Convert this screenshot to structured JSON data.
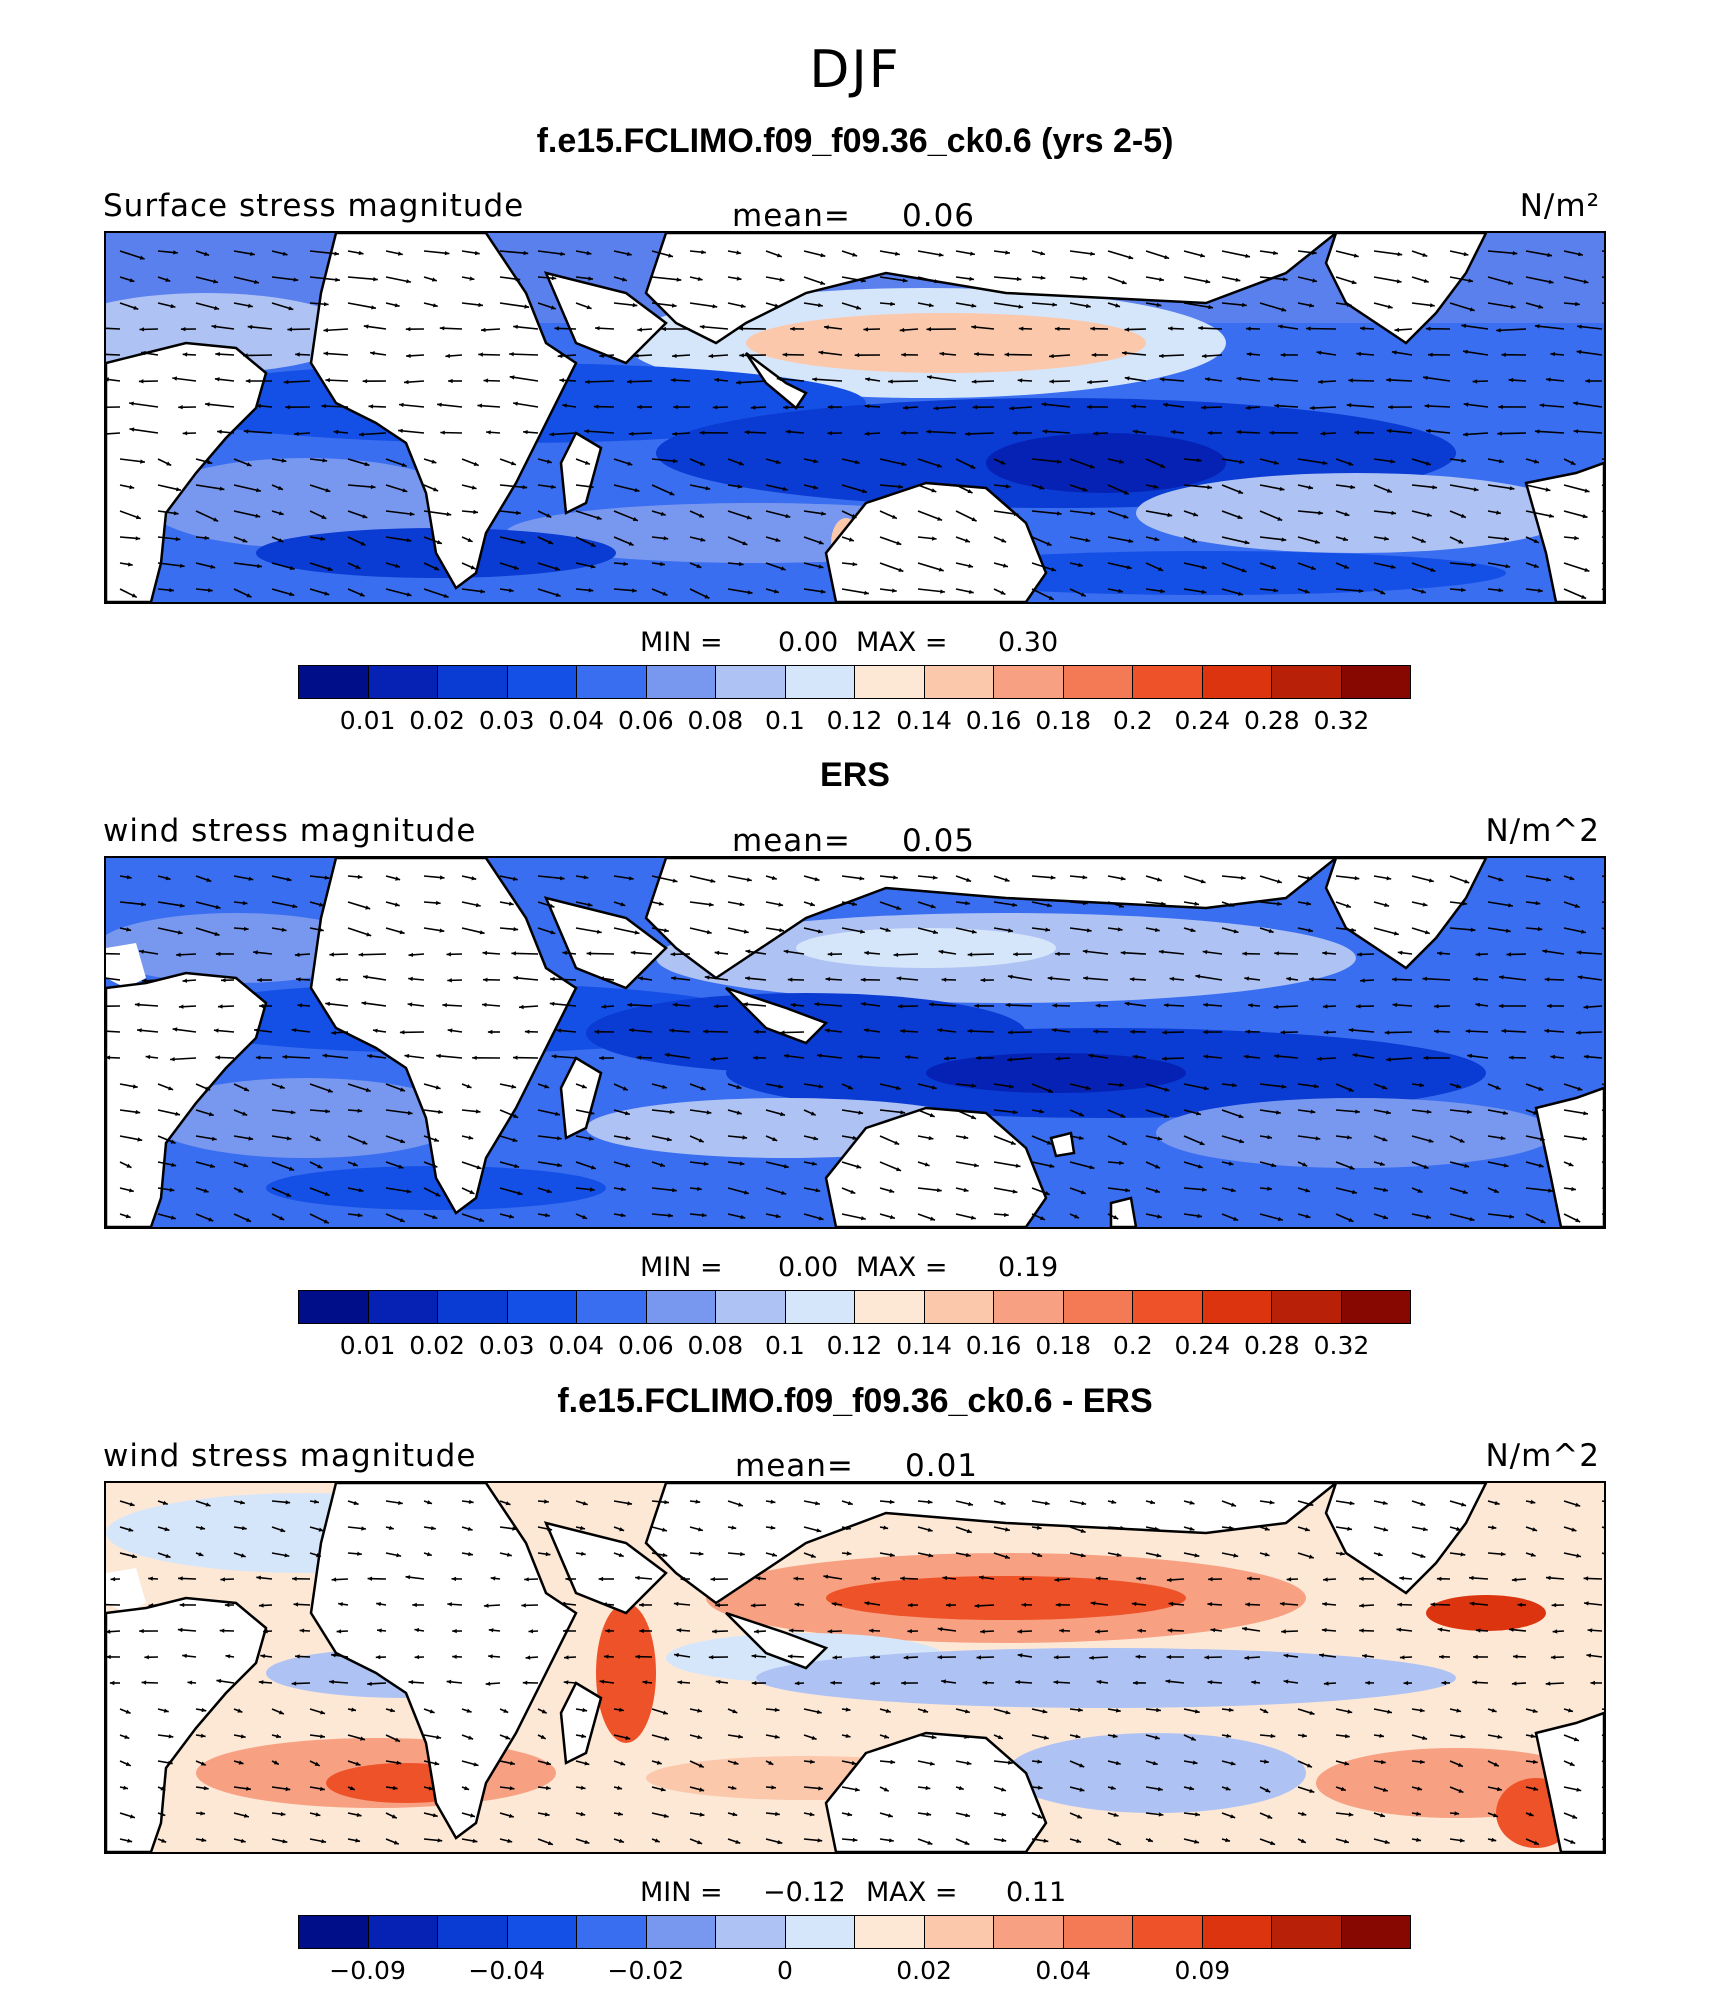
{
  "season": "DJF",
  "panels": [
    {
      "title": "f.e15.FCLIMO.f09_f09.36_ck0.6 (yrs 2-5)",
      "field_label": "Surface stress magnitude",
      "mean_label": "mean=",
      "mean_value": "0.06",
      "units": "N/m²",
      "min_label": "MIN =",
      "min_value": "0.00",
      "max_label": "MAX =",
      "max_value": "0.30",
      "colorbar_ticks": [
        "0.01",
        "0.02",
        "0.03",
        "0.04",
        "0.06",
        "0.08",
        "0.1",
        "0.12",
        "0.14",
        "0.16",
        "0.18",
        "0.2",
        "0.24",
        "0.28",
        "0.32"
      ]
    },
    {
      "title": "ERS",
      "field_label": "wind stress magnitude",
      "mean_label": "mean=",
      "mean_value": "0.05",
      "units": "N/m^2",
      "min_label": "MIN =",
      "min_value": "0.00",
      "max_label": "MAX =",
      "max_value": "0.19",
      "colorbar_ticks": [
        "0.01",
        "0.02",
        "0.03",
        "0.04",
        "0.06",
        "0.08",
        "0.1",
        "0.12",
        "0.14",
        "0.16",
        "0.18",
        "0.2",
        "0.24",
        "0.28",
        "0.32"
      ]
    },
    {
      "title": "f.e15.FCLIMO.f09_f09.36_ck0.6 - ERS",
      "field_label": "wind stress magnitude",
      "mean_label": "mean=",
      "mean_value": "0.01",
      "units": "N/m^2",
      "min_label": "MIN =",
      "min_value": "−0.12",
      "max_label": "MAX =",
      "max_value": "0.11",
      "colorbar_ticks": [
        "−0.09",
        "",
        "−0.04",
        "",
        "−0.02",
        "",
        "0",
        "",
        "0.02",
        "",
        "0.04",
        "",
        "0.09",
        ""
      ]
    }
  ],
  "colors": {
    "sequential": [
      "#000e8a",
      "#0622b4",
      "#0a3bd2",
      "#1550e6",
      "#3a6ef0",
      "#7898f0",
      "#aec2f4",
      "#d6e6fa",
      "#fde8d6",
      "#fbc8ac",
      "#f7a182",
      "#f37a54",
      "#ee5228",
      "#dd3410",
      "#b82008",
      "#870800"
    ],
    "diverging": [
      "#000e8a",
      "#0622b4",
      "#0a3bd2",
      "#1550e6",
      "#3a6ef0",
      "#7898f0",
      "#aec2f4",
      "#d6e6fa",
      "#fde8d6",
      "#fbc8ac",
      "#f7a182",
      "#f37a54",
      "#ee5228",
      "#dd3410",
      "#b82008",
      "#870800"
    ]
  }
}
